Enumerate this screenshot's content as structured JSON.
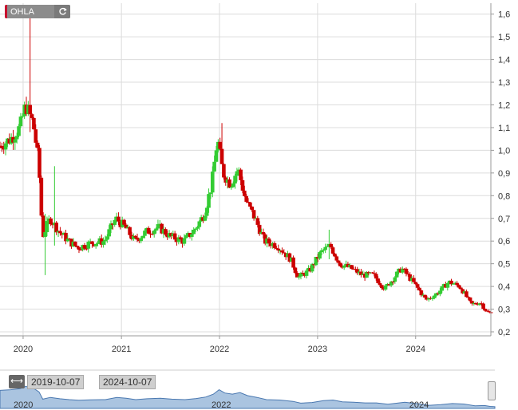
{
  "ticker": {
    "symbol": "OHLA",
    "refresh_icon": "refresh-icon"
  },
  "navigator": {
    "start_date": "2019-10-07",
    "end_date": "2024-10-07",
    "year_labels": [
      "2020",
      "2022",
      "2024"
    ]
  },
  "colors": {
    "up": "#33cc33",
    "down": "#cc0000",
    "grid": "#dcdcdc",
    "navigator_fill": "#aac4e0"
  },
  "chart_data": {
    "type": "candlestick",
    "x_unit": "weekly",
    "x_labels": [
      "2020",
      "2021",
      "2022",
      "2023",
      "2024"
    ],
    "x_label_dates": [
      "2020-01-01",
      "2021-01-01",
      "2022-01-01",
      "2023-01-01",
      "2024-01-01"
    ],
    "y_ticks": [
      "1,6",
      "1,5",
      "1,4",
      "1,3",
      "1,2",
      "1,1",
      "1,0",
      "0,9",
      "0,8",
      "0,7",
      "0,6",
      "0,5",
      "0,4",
      "0,3",
      "0,2"
    ],
    "ylim": [
      0.2,
      1.65
    ],
    "date_range": [
      "2019-10-07",
      "2024-10-07"
    ],
    "trend": [
      {
        "d": "2019-10-07",
        "v": 1.02
      },
      {
        "d": "2019-11-15",
        "v": 1.05
      },
      {
        "d": "2019-12-20",
        "v": 1.1
      },
      {
        "d": "2020-01-10",
        "v": 1.2
      },
      {
        "d": "2020-02-07",
        "v": 1.12
      },
      {
        "d": "2020-02-28",
        "v": 0.95
      },
      {
        "d": "2020-03-13",
        "v": 0.62
      },
      {
        "d": "2020-04-10",
        "v": 0.7
      },
      {
        "d": "2020-05-15",
        "v": 0.64
      },
      {
        "d": "2020-06-19",
        "v": 0.6
      },
      {
        "d": "2020-07-24",
        "v": 0.57
      },
      {
        "d": "2020-09-04",
        "v": 0.59
      },
      {
        "d": "2020-10-30",
        "v": 0.6
      },
      {
        "d": "2020-12-11",
        "v": 0.7
      },
      {
        "d": "2021-01-15",
        "v": 0.66
      },
      {
        "d": "2021-02-19",
        "v": 0.6
      },
      {
        "d": "2021-04-02",
        "v": 0.64
      },
      {
        "d": "2021-05-21",
        "v": 0.66
      },
      {
        "d": "2021-07-02",
        "v": 0.62
      },
      {
        "d": "2021-08-20",
        "v": 0.6
      },
      {
        "d": "2021-10-01",
        "v": 0.65
      },
      {
        "d": "2021-11-05",
        "v": 0.72
      },
      {
        "d": "2021-12-03",
        "v": 0.85
      },
      {
        "d": "2021-12-24",
        "v": 1.05
      },
      {
        "d": "2022-01-14",
        "v": 0.9
      },
      {
        "d": "2022-02-11",
        "v": 0.85
      },
      {
        "d": "2022-03-11",
        "v": 0.92
      },
      {
        "d": "2022-04-08",
        "v": 0.78
      },
      {
        "d": "2022-05-13",
        "v": 0.7
      },
      {
        "d": "2022-06-17",
        "v": 0.6
      },
      {
        "d": "2022-08-05",
        "v": 0.58
      },
      {
        "d": "2022-09-23",
        "v": 0.52
      },
      {
        "d": "2022-10-21",
        "v": 0.44
      },
      {
        "d": "2022-12-02",
        "v": 0.47
      },
      {
        "d": "2023-01-13",
        "v": 0.55
      },
      {
        "d": "2023-02-17",
        "v": 0.58
      },
      {
        "d": "2023-03-24",
        "v": 0.5
      },
      {
        "d": "2023-05-05",
        "v": 0.48
      },
      {
        "d": "2023-06-16",
        "v": 0.45
      },
      {
        "d": "2023-07-28",
        "v": 0.45
      },
      {
        "d": "2023-09-08",
        "v": 0.39
      },
      {
        "d": "2023-11-10",
        "v": 0.48
      },
      {
        "d": "2023-12-22",
        "v": 0.42
      },
      {
        "d": "2024-02-09",
        "v": 0.34
      },
      {
        "d": "2024-03-22",
        "v": 0.37
      },
      {
        "d": "2024-05-03",
        "v": 0.42
      },
      {
        "d": "2024-06-14",
        "v": 0.4
      },
      {
        "d": "2024-07-26",
        "v": 0.32
      },
      {
        "d": "2024-08-30",
        "v": 0.33
      },
      {
        "d": "2024-09-20",
        "v": 0.29
      },
      {
        "d": "2024-10-07",
        "v": 0.28
      }
    ],
    "spikes": [
      {
        "d": "2020-01-24",
        "high": 1.63,
        "low": 1.08
      },
      {
        "d": "2020-03-20",
        "high": 0.72,
        "low": 0.45
      },
      {
        "d": "2020-04-24",
        "high": 0.93,
        "low": 0.58
      },
      {
        "d": "2022-01-07",
        "high": 1.12,
        "low": 0.95
      },
      {
        "d": "2023-02-10",
        "high": 0.65,
        "low": 0.52
      }
    ]
  }
}
